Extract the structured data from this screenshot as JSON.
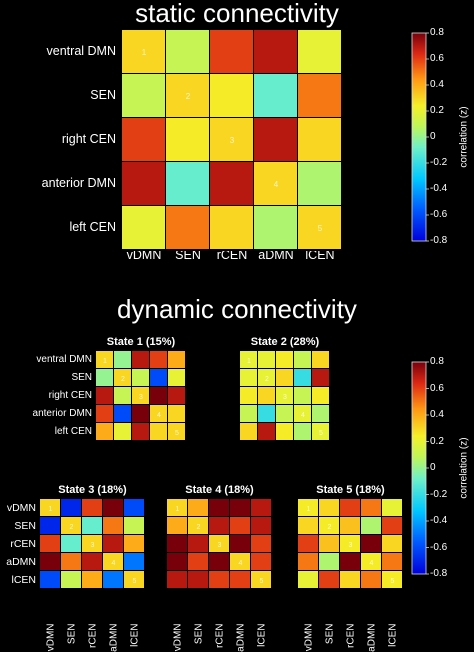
{
  "static_title": "static connectivity",
  "dynamic_title": "dynamic connectivity",
  "colorbar_label": "correlation (z)",
  "colorbar_ticks": [
    "0.8",
    "0.6",
    "0.4",
    "0.2",
    "0",
    "-0.2",
    "-0.4",
    "-0.6",
    "-0.8"
  ],
  "full_labels": [
    "ventral DMN",
    "SEN",
    "right CEN",
    "anterior DMN",
    "left CEN"
  ],
  "short_labels": [
    "vDMN",
    "SEN",
    "rCEN",
    "aDMN",
    "lCEN"
  ],
  "colors": {
    "background": "#000000",
    "text": "#ffffff",
    "cell_border": "#000000"
  },
  "chart_data": [
    {
      "type": "heatmap",
      "title": "static connectivity",
      "xlabel": "",
      "ylabel": "",
      "rows": [
        "ventral DMN",
        "SEN",
        "right CEN",
        "anterior DMN",
        "left CEN"
      ],
      "cols": [
        "vDMN",
        "SEN",
        "rCEN",
        "aDMN",
        "lCEN"
      ],
      "values": [
        [
          0.3,
          0.1,
          0.6,
          0.7,
          0.2
        ],
        [
          0.1,
          0.3,
          0.25,
          -0.1,
          0.5
        ],
        [
          0.6,
          0.25,
          0.3,
          0.7,
          0.3
        ],
        [
          0.7,
          -0.1,
          0.7,
          0.3,
          0.05
        ],
        [
          0.2,
          0.5,
          0.3,
          0.05,
          0.3
        ]
      ],
      "diagonal_labels": [
        "1",
        "2",
        "3",
        "4",
        "5"
      ],
      "colorbar": {
        "label": "correlation (z)",
        "range": [
          -0.8,
          0.8
        ]
      }
    },
    {
      "type": "heatmap",
      "title": "State 1 (15%)",
      "rows": [
        "ventral DMN",
        "SEN",
        "right CEN",
        "anterior DMN",
        "left CEN"
      ],
      "cols": [
        "vDMN",
        "SEN",
        "rCEN",
        "aDMN",
        "lCEN"
      ],
      "values": [
        [
          0.3,
          0.0,
          0.7,
          0.6,
          0.4
        ],
        [
          0.0,
          0.3,
          0.1,
          -0.6,
          0.2
        ],
        [
          0.7,
          0.1,
          0.3,
          0.8,
          0.7
        ],
        [
          0.6,
          -0.6,
          0.8,
          0.3,
          0.3
        ],
        [
          0.4,
          0.2,
          0.7,
          0.3,
          0.3
        ]
      ],
      "diagonal_labels": [
        "1",
        "2",
        "3",
        "4",
        "5"
      ]
    },
    {
      "type": "heatmap",
      "title": "State 2 (28%)",
      "rows": [
        "ventral DMN",
        "SEN",
        "right CEN",
        "anterior DMN",
        "left CEN"
      ],
      "cols": [
        "vDMN",
        "SEN",
        "rCEN",
        "aDMN",
        "lCEN"
      ],
      "values": [
        [
          0.2,
          0.2,
          0.25,
          0.1,
          0.3
        ],
        [
          0.2,
          0.2,
          0.3,
          -0.2,
          0.7
        ],
        [
          0.25,
          0.3,
          0.2,
          0.1,
          0.25
        ],
        [
          0.1,
          -0.2,
          0.1,
          0.2,
          0.05
        ],
        [
          0.3,
          0.7,
          0.25,
          0.05,
          0.2
        ]
      ],
      "diagonal_labels": [
        "1",
        "2",
        "3",
        "4",
        "5"
      ]
    },
    {
      "type": "heatmap",
      "title": "State 3 (18%)",
      "rows": [
        "vDMN",
        "SEN",
        "rCEN",
        "aDMN",
        "lCEN"
      ],
      "cols": [
        "vDMN",
        "SEN",
        "rCEN",
        "aDMN",
        "lCEN"
      ],
      "values": [
        [
          0.3,
          -0.7,
          0.6,
          0.8,
          -0.6
        ],
        [
          -0.7,
          0.3,
          -0.1,
          0.5,
          0.1
        ],
        [
          0.6,
          -0.1,
          0.3,
          0.7,
          0.4
        ],
        [
          0.8,
          0.5,
          0.7,
          0.3,
          -0.5
        ],
        [
          -0.6,
          0.1,
          0.4,
          -0.5,
          0.3
        ]
      ],
      "diagonal_labels": [
        "1",
        "2",
        "3",
        "4",
        "5"
      ]
    },
    {
      "type": "heatmap",
      "title": "State 4 (18%)",
      "rows": [
        "vDMN",
        "SEN",
        "rCEN",
        "aDMN",
        "lCEN"
      ],
      "cols": [
        "vDMN",
        "SEN",
        "rCEN",
        "aDMN",
        "lCEN"
      ],
      "values": [
        [
          0.3,
          0.4,
          0.8,
          0.8,
          0.7
        ],
        [
          0.4,
          0.3,
          0.7,
          0.6,
          0.7
        ],
        [
          0.8,
          0.7,
          0.3,
          0.9,
          0.6
        ],
        [
          0.8,
          0.6,
          0.9,
          0.3,
          0.6
        ],
        [
          0.7,
          0.7,
          0.6,
          0.6,
          0.3
        ]
      ],
      "diagonal_labels": [
        "1",
        "2",
        "3",
        "4",
        "5"
      ]
    },
    {
      "type": "heatmap",
      "title": "State 5 (18%)",
      "rows": [
        "vDMN",
        "SEN",
        "rCEN",
        "aDMN",
        "lCEN"
      ],
      "cols": [
        "vDMN",
        "SEN",
        "rCEN",
        "aDMN",
        "lCEN"
      ],
      "values": [
        [
          0.25,
          0.3,
          0.6,
          0.5,
          0.2
        ],
        [
          0.3,
          0.25,
          0.35,
          0.05,
          0.6
        ],
        [
          0.6,
          0.35,
          0.25,
          0.8,
          0.3
        ],
        [
          0.5,
          0.05,
          0.8,
          0.25,
          0.5
        ],
        [
          0.2,
          0.6,
          0.3,
          0.5,
          0.25
        ]
      ],
      "diagonal_labels": [
        "1",
        "2",
        "3",
        "4",
        "5"
      ]
    }
  ]
}
